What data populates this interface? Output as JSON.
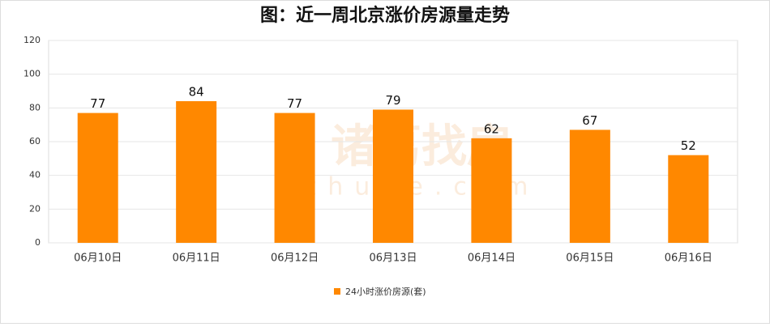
{
  "chart_data": {
    "type": "bar",
    "title": "图：近一周北京涨价房源量走势",
    "categories": [
      "06月10日",
      "06月11日",
      "06月12日",
      "06月13日",
      "06月14日",
      "06月15日",
      "06月16日"
    ],
    "series": [
      {
        "name": "24小时涨价房源(套)",
        "color": "#ff8800",
        "values": [
          77,
          84,
          77,
          79,
          62,
          67,
          52
        ]
      }
    ],
    "ylim": [
      0,
      120
    ],
    "yticks": [
      0,
      20,
      40,
      60,
      80,
      100,
      120
    ],
    "grid": true,
    "legend": "bottom",
    "watermark": [
      "诸葛找房",
      "zhuge.com"
    ]
  }
}
